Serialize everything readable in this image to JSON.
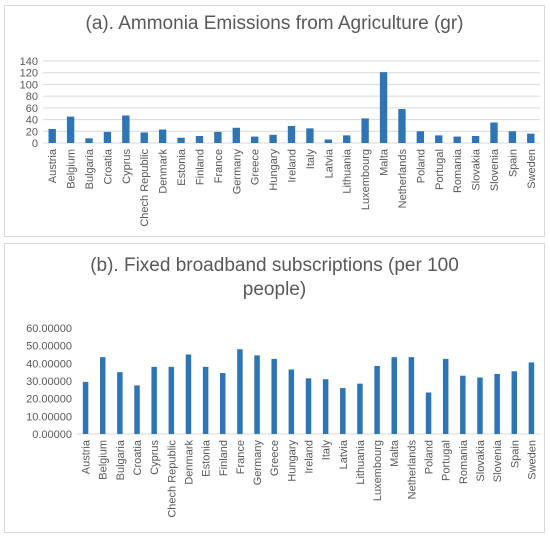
{
  "chart_data": [
    {
      "type": "bar",
      "title": "(a). Ammonia Emissions from Agriculture (gr)",
      "ylim": [
        0,
        140
      ],
      "yticks": [
        "0",
        "20",
        "40",
        "60",
        "80",
        "100",
        "120",
        "140"
      ],
      "grid": true,
      "bar_color": "#2e75b6",
      "categories": [
        "Austria",
        "Belgium",
        "Bulgaria",
        "Croatia",
        "Cyprus",
        "Chech Republic",
        "Denmark",
        "Estonia",
        "Finland",
        "France",
        "Germany",
        "Greece",
        "Hungary",
        "Ireland",
        "Italy",
        "Latvia",
        "Lithuania",
        "Luxembourg",
        "Malta",
        "Netherlands",
        "Poland",
        "Portugal",
        "Romania",
        "Slovakia",
        "Slovenia",
        "Spain",
        "Sweden"
      ],
      "values": [
        24,
        45,
        8,
        19,
        47,
        18,
        23,
        9,
        12,
        19,
        26,
        11,
        14,
        29,
        25,
        6,
        13,
        42,
        121,
        58,
        20,
        13,
        11,
        12,
        35,
        20,
        16
      ]
    },
    {
      "type": "bar",
      "title": "(b). Fixed broadband subscriptions (per 100 people)",
      "ylim": [
        0,
        60
      ],
      "yticks": [
        "0.00000",
        "10.00000",
        "20.00000",
        "30.00000",
        "40.00000",
        "50.00000",
        "60.00000"
      ],
      "grid": false,
      "bar_color": "#2e75b6",
      "categories": [
        "Austria",
        "Belgium",
        "Bulgaria",
        "Croatia",
        "Cyprus",
        "Chech Republic",
        "Denmark",
        "Estonia",
        "Finland",
        "France",
        "Germany",
        "Greece",
        "Hungary",
        "Ireland",
        "Italy",
        "Latvia",
        "Lithuania",
        "Luxembourg",
        "Malta",
        "Netherlands",
        "Poland",
        "Portugal",
        "Romania",
        "Slovakia",
        "Slovenia",
        "Spain",
        "Sweden"
      ],
      "values": [
        29.5,
        43.5,
        35,
        27.5,
        38,
        38,
        45,
        38,
        34.5,
        48,
        44.5,
        42.5,
        36.5,
        31.5,
        31,
        26,
        28.5,
        38.5,
        43.5,
        43.5,
        23.5,
        42.5,
        33,
        32,
        34,
        35.5,
        40.5
      ]
    }
  ]
}
